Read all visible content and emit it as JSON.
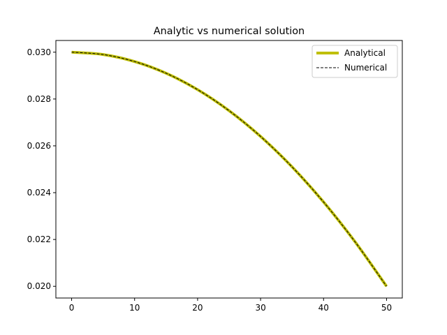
{
  "chart_data": {
    "type": "line",
    "title": "Analytic vs numerical solution",
    "xlabel": "",
    "ylabel": "",
    "xlim": [
      -2.5,
      52.5
    ],
    "ylim": [
      0.0195,
      0.0305
    ],
    "x_ticks": [
      0,
      10,
      20,
      30,
      40,
      50
    ],
    "x_tick_labels": [
      "0",
      "10",
      "20",
      "30",
      "40",
      "50"
    ],
    "y_ticks": [
      0.02,
      0.022,
      0.024,
      0.026,
      0.028,
      0.03
    ],
    "y_tick_labels": [
      "0.020",
      "0.022",
      "0.024",
      "0.026",
      "0.028",
      "0.030"
    ],
    "grid": false,
    "legend_position": "top-right",
    "x": [
      0,
      5,
      10,
      15,
      20,
      25,
      30,
      35,
      40,
      45,
      50
    ],
    "series": [
      {
        "name": "Analytical",
        "color": "#bfbf00",
        "style": "solid",
        "values": [
          0.03,
          0.0299,
          0.0296,
          0.0291,
          0.0284,
          0.0275,
          0.0264,
          0.0251,
          0.0236,
          0.0219,
          0.02
        ]
      },
      {
        "name": "Numerical",
        "color": "#000000",
        "style": "dashed",
        "values": [
          0.03,
          0.0299,
          0.0296,
          0.0291,
          0.0284,
          0.0275,
          0.0264,
          0.0251,
          0.0236,
          0.0219,
          0.02
        ]
      }
    ]
  }
}
